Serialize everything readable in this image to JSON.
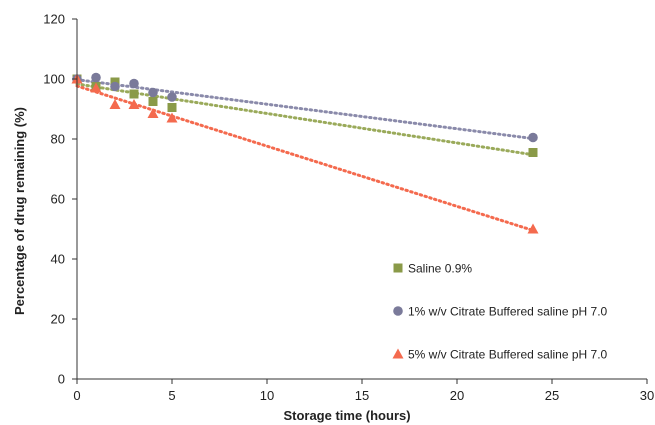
{
  "chart_data": {
    "type": "scatter",
    "xlabel": "Storage time (hours)",
    "ylabel": "Percentage of drug remaining  (%)",
    "xlim": [
      0,
      30
    ],
    "ylim": [
      0,
      120
    ],
    "xticks": [
      0,
      5,
      10,
      15,
      20,
      25,
      30
    ],
    "yticks": [
      0,
      20,
      40,
      60,
      80,
      100,
      120
    ],
    "grid": false,
    "legend_position": "right",
    "trendlines": "linear, dotted",
    "series": [
      {
        "name": "Saline 0.9%",
        "marker": "square",
        "color": "#8a9a48",
        "line_color": "#9aaa5a",
        "x": [
          0,
          1,
          2,
          3,
          4,
          5,
          24
        ],
        "y": [
          100,
          97.5,
          99,
          95,
          92.5,
          90.5,
          75.5
        ]
      },
      {
        "name": "1% w/v Citrate Buffered saline pH 7.0",
        "marker": "circle",
        "color": "#7a7a9a",
        "line_color": "#8a8aaa",
        "x": [
          0,
          1,
          2,
          3,
          4,
          5,
          24
        ],
        "y": [
          100,
          100.5,
          97.5,
          98.5,
          95.5,
          94,
          80.5
        ]
      },
      {
        "name": "5% w/v Citrate Buffered saline pH 7.0",
        "marker": "triangle",
        "color": "#f46a4e",
        "line_color": "#f46a4e",
        "x": [
          0,
          1,
          2,
          3,
          4,
          5,
          24
        ],
        "y": [
          100,
          97,
          91.5,
          91.5,
          88.5,
          87,
          50
        ]
      }
    ]
  }
}
